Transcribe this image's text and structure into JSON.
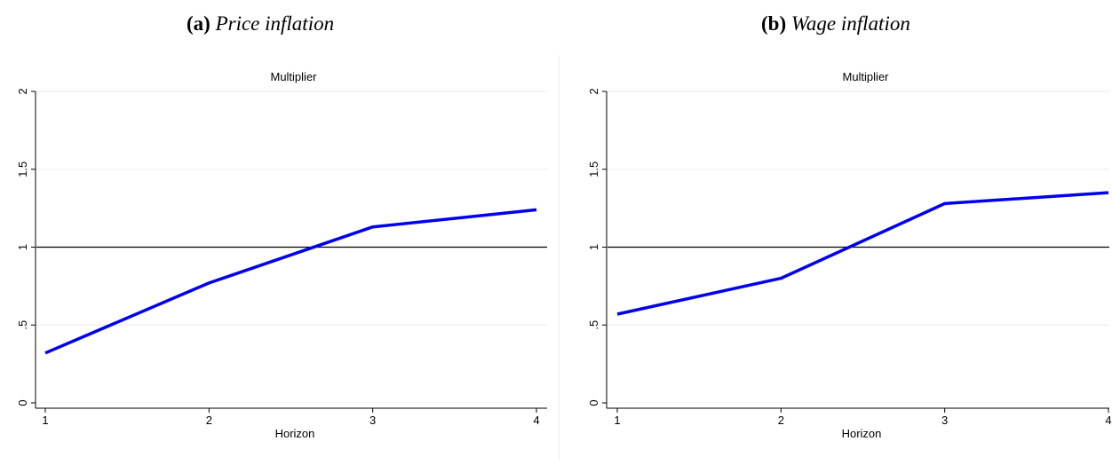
{
  "panels": [
    {
      "tag": "(a)",
      "name": "Price inflation"
    },
    {
      "tag": "(b)",
      "name": "Wage inflation"
    }
  ],
  "chart_data": [
    {
      "type": "line",
      "title": "Multiplier",
      "xlabel": "Horizon",
      "ylabel": "",
      "x": [
        1,
        2,
        3,
        4
      ],
      "x_ticks": [
        "1",
        "2",
        "3",
        "4"
      ],
      "y_ticks": [
        "0",
        ".5",
        "1",
        "1.5",
        "2"
      ],
      "y_tick_values": [
        0,
        0.5,
        1,
        1.5,
        2
      ],
      "ylim": [
        0,
        2
      ],
      "xlim": [
        1,
        4
      ],
      "reference_line": 1,
      "grid": true,
      "line_color": "#0000ee",
      "series": [
        {
          "values": [
            0.32,
            0.77,
            1.13,
            1.24
          ]
        }
      ]
    },
    {
      "type": "line",
      "title": "Multiplier",
      "xlabel": "Horizon",
      "ylabel": "",
      "x": [
        1,
        2,
        3,
        4
      ],
      "x_ticks": [
        "1",
        "2",
        "3",
        "4"
      ],
      "y_ticks": [
        "0",
        ".5",
        "1",
        "1.5",
        "2"
      ],
      "y_tick_values": [
        0,
        0.5,
        1,
        1.5,
        2
      ],
      "ylim": [
        0,
        2
      ],
      "xlim": [
        1,
        4
      ],
      "reference_line": 1,
      "grid": true,
      "line_color": "#0000ee",
      "series": [
        {
          "values": [
            0.57,
            0.8,
            1.28,
            1.35
          ]
        }
      ]
    }
  ]
}
